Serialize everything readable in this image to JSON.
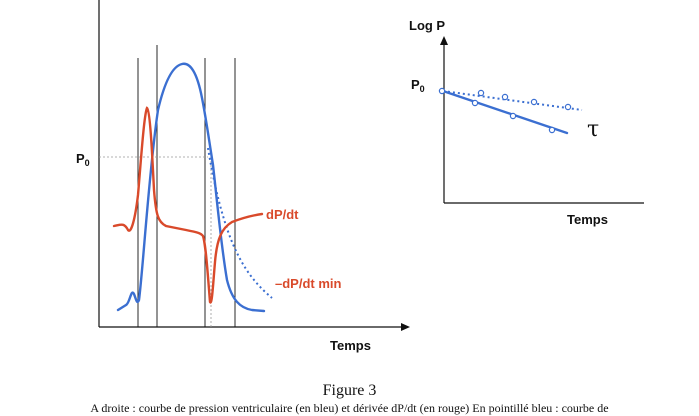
{
  "left_panel": {
    "p0_label": "P",
    "p0_subscript": "0",
    "dpdt_label": "dP/dt",
    "dpdt_min_label": "–dP/dt min",
    "xlabel": "Temps"
  },
  "right_panel": {
    "ylabel": "Log P",
    "p0_label": "P",
    "p0_subscript": "0",
    "tau_label": "τ",
    "xlabel": "Temps"
  },
  "caption": {
    "title": "Figure 3",
    "text": "A droite : courbe de pression ventriculaire (en bleu) et dérivée dP/dt (en rouge) En pointillé bleu : courbe de"
  },
  "colors": {
    "pressure": "#3b6fd1",
    "derivative": "#d94a2b",
    "axis": "#111111",
    "guide": "#999999"
  }
}
